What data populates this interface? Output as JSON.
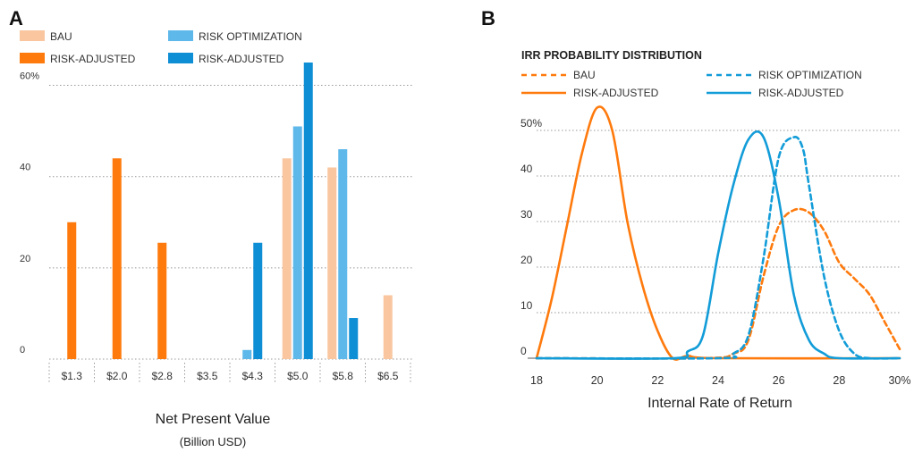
{
  "panels": {
    "a": {
      "label": "A"
    },
    "b": {
      "label": "B"
    }
  },
  "colors": {
    "bau_npv": "#F9C6A0",
    "risk_adjusted_orange": "#FF7A0D",
    "risk_optimization_npv": "#5EB8EA",
    "risk_adjusted_blue": "#0E8ED4",
    "irr_blue": "#129CD8",
    "grid": "#999999"
  },
  "chart_data": [
    {
      "panel": "A",
      "type": "bar",
      "xlabel": "Net Present Value",
      "xlabel2": "(Billion USD)",
      "ylabel": "",
      "ylim": [
        0,
        65
      ],
      "yticks": [
        {
          "value": 0,
          "label": "0"
        },
        {
          "value": 20,
          "label": "20"
        },
        {
          "value": 40,
          "label": "40"
        },
        {
          "value": 60,
          "label": "60%"
        }
      ],
      "categories": [
        "$1.3",
        "$2.0",
        "$2.8",
        "$3.5",
        "$4.3",
        "$5.0",
        "$5.8",
        "$6.5"
      ],
      "legend_position": "top-left",
      "series": [
        {
          "name": "BAU",
          "color_key": "bau_npv",
          "values": [
            0,
            0,
            0,
            0,
            0,
            44,
            42,
            14
          ]
        },
        {
          "name": "RISK-ADJUSTED",
          "color_key": "risk_adjusted_orange",
          "values": [
            30,
            44,
            25.5,
            0,
            0,
            0,
            0,
            0
          ]
        },
        {
          "name": "RISK OPTIMIZATION",
          "color_key": "risk_optimization_npv",
          "values": [
            0,
            0,
            0,
            0,
            2,
            51,
            46,
            0
          ]
        },
        {
          "name": "RISK-ADJUSTED",
          "color_key": "risk_adjusted_blue",
          "values": [
            0,
            0,
            0,
            0,
            25.5,
            65,
            9,
            0
          ]
        }
      ]
    },
    {
      "panel": "B",
      "type": "line",
      "title": "IRR PROBABILITY DISTRIBUTION",
      "xlabel": "Internal Rate of Return",
      "ylabel": "",
      "xlim": [
        18,
        30
      ],
      "ylim": [
        0,
        55
      ],
      "xticks": [
        {
          "value": 18,
          "label": "18"
        },
        {
          "value": 20,
          "label": "20"
        },
        {
          "value": 22,
          "label": "22"
        },
        {
          "value": 24,
          "label": "24"
        },
        {
          "value": 26,
          "label": "26"
        },
        {
          "value": 28,
          "label": "28"
        },
        {
          "value": 30,
          "label": "30%"
        }
      ],
      "yticks": [
        {
          "value": 0,
          "label": "0"
        },
        {
          "value": 10,
          "label": "10"
        },
        {
          "value": 20,
          "label": "20"
        },
        {
          "value": 30,
          "label": "30"
        },
        {
          "value": 40,
          "label": "40"
        },
        {
          "value": 50,
          "label": "50%"
        }
      ],
      "legend_position": "top",
      "series": [
        {
          "name": "BAU",
          "color_key": "risk_adjusted_orange",
          "dashed": true,
          "x": [
            18,
            23.5,
            24.5,
            25,
            25.5,
            26,
            26.5,
            27,
            27.5,
            28,
            28.5,
            29,
            29.5,
            30
          ],
          "y": [
            0,
            0,
            1,
            4,
            18,
            29,
            32.5,
            32,
            28,
            21,
            17.5,
            14,
            8,
            2
          ]
        },
        {
          "name": "RISK-ADJUSTED",
          "color_key": "risk_adjusted_orange",
          "dashed": false,
          "x": [
            18,
            18.5,
            19,
            19.5,
            20,
            20.5,
            21,
            21.5,
            22,
            22.5,
            23,
            24,
            30
          ],
          "y": [
            0,
            13,
            29,
            45,
            55,
            50,
            30,
            16,
            6,
            0,
            0.5,
            0,
            0
          ]
        },
        {
          "name": "RISK OPTIMIZATION",
          "color_key": "irr_blue",
          "dashed": true,
          "x": [
            18,
            24,
            24.5,
            25,
            25.5,
            26,
            26.5,
            26.8,
            27,
            27.5,
            28,
            28.5,
            29,
            30
          ],
          "y": [
            0,
            0,
            1,
            5,
            22,
            44,
            48.5,
            46,
            38,
            18,
            6,
            1,
            0,
            0
          ]
        },
        {
          "name": "RISK-ADJUSTED",
          "color_key": "irr_blue",
          "dashed": false,
          "x": [
            18,
            22.5,
            23,
            23.5,
            24,
            24.5,
            25,
            25.5,
            26,
            26.5,
            27,
            27.5,
            28,
            30
          ],
          "y": [
            0,
            0,
            1.5,
            5,
            23,
            38,
            48,
            48.5,
            35,
            14,
            4,
            1,
            0,
            0
          ]
        }
      ]
    }
  ]
}
